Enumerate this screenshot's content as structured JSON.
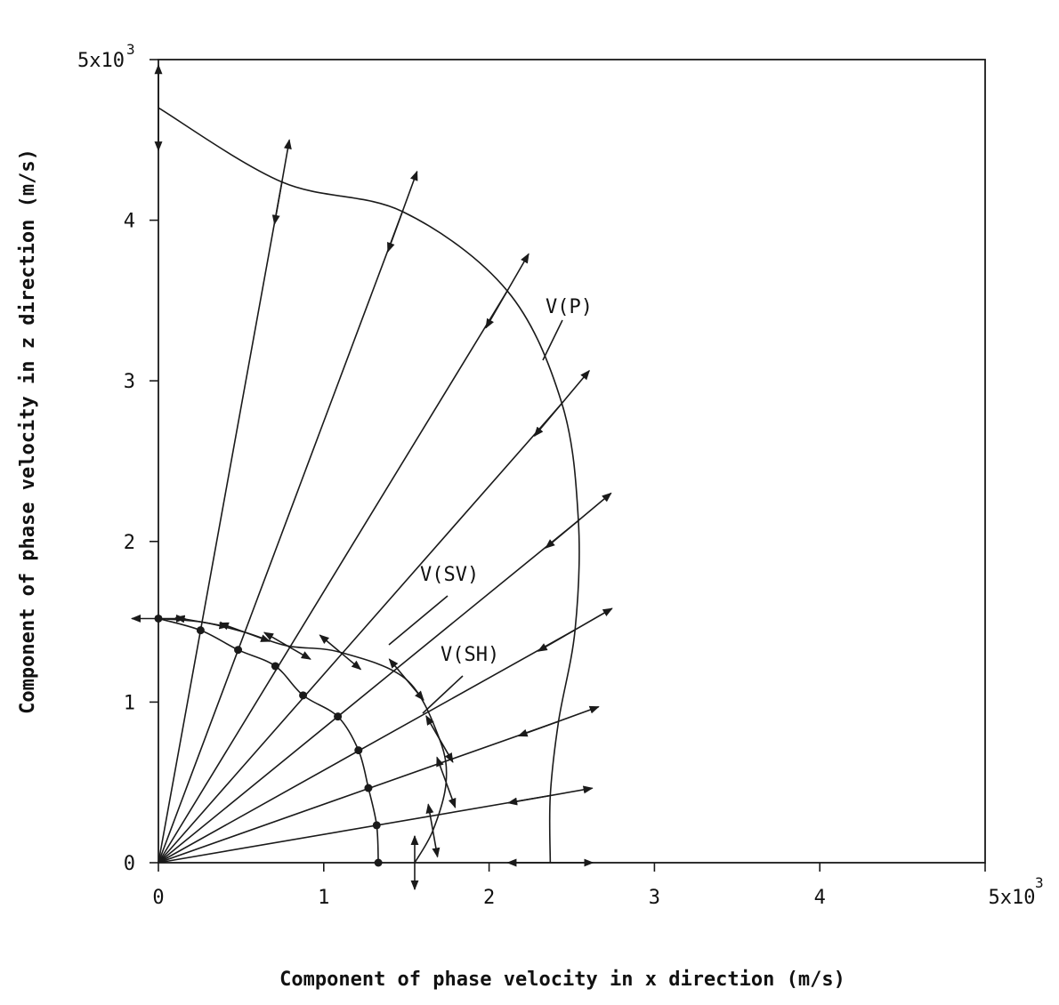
{
  "chart_data": {
    "type": "line",
    "title": "",
    "xlabel": "Component of phase velocity in x direction (m/s)",
    "ylabel": "Component of phase velocity in z direction (m/s)",
    "xlim": [
      0,
      5000
    ],
    "ylim": [
      0,
      5000
    ],
    "x_ticks": [
      "0",
      "1",
      "2",
      "3",
      "4",
      "5x10"
    ],
    "y_ticks": [
      "0",
      "1",
      "2",
      "3",
      "4",
      "5x10"
    ],
    "tick_exponent": "3",
    "grid": false,
    "legend": "none",
    "ray_angles_deg": [
      10,
      20,
      30,
      40,
      50,
      60,
      70,
      80,
      90
    ],
    "series": [
      {
        "name": "V(P)",
        "points": [
          [
            0,
            4700
          ],
          [
            747,
            4238
          ],
          [
            1476,
            4054
          ],
          [
            2110,
            3560
          ],
          [
            2440,
            2860
          ],
          [
            2540,
            2130
          ],
          [
            2520,
            1450
          ],
          [
            2420,
            880
          ],
          [
            2370,
            418
          ],
          [
            2370,
            0
          ]
        ]
      },
      {
        "name": "V(SV)",
        "points": [
          [
            0,
            1520
          ],
          [
            264,
            1498
          ],
          [
            522,
            1435
          ],
          [
            780,
            1350
          ],
          [
            1100,
            1310
          ],
          [
            1500,
            1140
          ],
          [
            1700,
            770
          ],
          [
            1740,
            500
          ],
          [
            1660,
            200
          ],
          [
            1550,
            0
          ]
        ]
      },
      {
        "name": "V(SH)",
        "points": [
          [
            0,
            1520
          ],
          [
            255,
            1447
          ],
          [
            482,
            1325
          ],
          [
            707,
            1224
          ],
          [
            875,
            1042
          ],
          [
            1085,
            910
          ],
          [
            1210,
            700
          ],
          [
            1270,
            465
          ],
          [
            1320,
            233
          ],
          [
            1330,
            0
          ]
        ]
      }
    ]
  }
}
